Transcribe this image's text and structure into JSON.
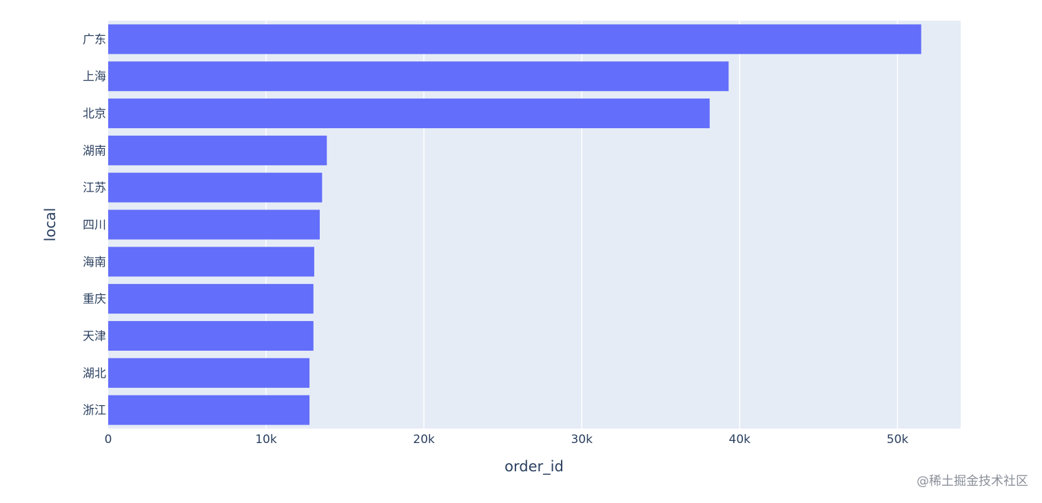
{
  "chart_data": {
    "type": "bar",
    "orientation": "horizontal",
    "categories": [
      "广东",
      "上海",
      "北京",
      "湖南",
      "江苏",
      "四川",
      "海南",
      "重庆",
      "天津",
      "湖北",
      "浙江"
    ],
    "values": [
      51500,
      39300,
      38100,
      13850,
      13550,
      13400,
      13050,
      13000,
      13000,
      12750,
      12750
    ],
    "xlabel": "order_id",
    "ylabel": "local",
    "xlim": [
      0,
      54000
    ],
    "xticks": [
      0,
      10000,
      20000,
      30000,
      40000,
      50000
    ],
    "xtick_labels": [
      "0",
      "10k",
      "20k",
      "30k",
      "40k",
      "50k"
    ],
    "grid": true,
    "bar_color": "#636efa",
    "plot_bg": "#e5ecf6"
  },
  "watermark": "@稀土掘金技术社区"
}
